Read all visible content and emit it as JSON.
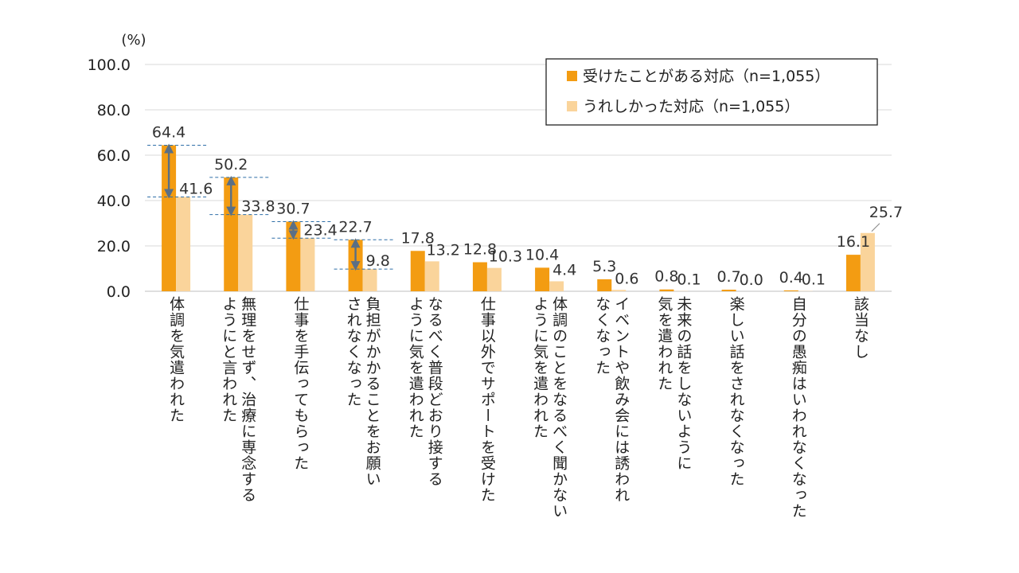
{
  "chart_data": {
    "type": "bar",
    "unit_label": "(%)",
    "ylim": [
      0,
      100
    ],
    "yticks": [
      "0.0",
      "20.0",
      "40.0",
      "60.0",
      "80.0",
      "100.0"
    ],
    "categories": [
      "体調を気遣われた",
      "無理をせず、治療に専念する\nようにと言われた",
      "仕事を手伝ってもらった",
      "負担がかかることをお願い\nされなくなった",
      "なるべく普段どおり接する\nように気を遣われた",
      "仕事以外でサポートを受けた",
      "体調のことをなるべく聞かない\nように気を遣われた",
      "イベントや飲み会には誘われ\nなくなった",
      "未来の話をしないように\n気を遣われた",
      "楽しい話をされなくなった",
      "自分の愚痴はいわれなくなった",
      "該当なし"
    ],
    "series": [
      {
        "name": "受けたことがある対応（n=1,055）",
        "color": "#F39C12",
        "values": [
          64.4,
          50.2,
          30.7,
          22.7,
          17.8,
          12.8,
          10.4,
          5.3,
          0.8,
          0.7,
          0.4,
          16.1
        ],
        "labels": [
          "64.4",
          "50.2",
          "30.7",
          "22.7",
          "17.8",
          "12.8",
          "10.4",
          "5.3",
          "0.8",
          "0.7",
          "0.4",
          "16.1"
        ]
      },
      {
        "name": "うれしかった対応（n=1,055）",
        "color": "#FAD49B",
        "values": [
          41.6,
          33.8,
          23.4,
          9.8,
          13.2,
          10.3,
          4.4,
          0.6,
          0.1,
          0.0,
          0.1,
          25.7
        ],
        "labels": [
          "41.6",
          "33.8",
          "23.4",
          "9.8",
          "13.2",
          "10.3",
          "4.4",
          "0.6",
          "0.1",
          "0.0",
          "0.1",
          "25.7"
        ]
      }
    ],
    "gap_arrows_for_categories": [
      0,
      1,
      2,
      3
    ],
    "legend_position": "top-right",
    "grid": true
  }
}
